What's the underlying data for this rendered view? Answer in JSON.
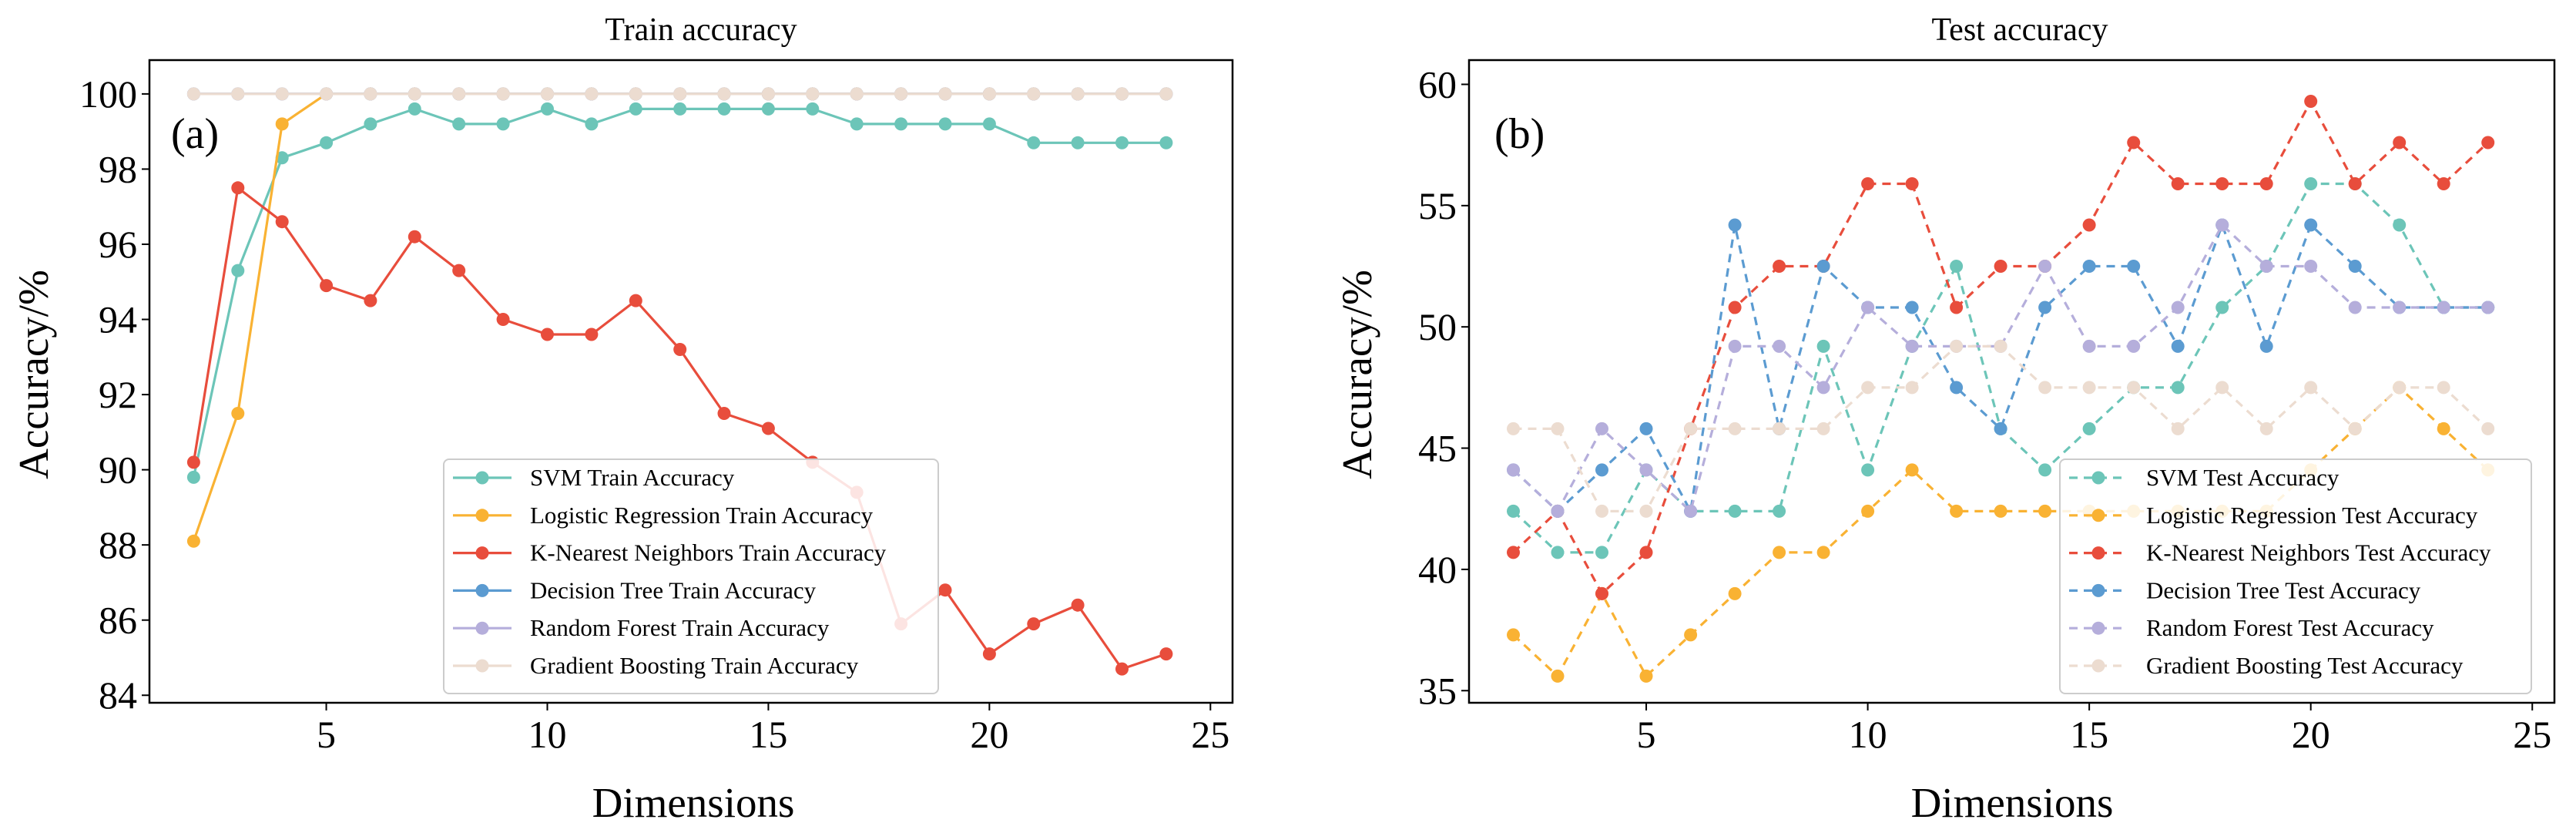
{
  "chart_data": [
    {
      "type": "line",
      "title": "Train accuracy",
      "panel_label": "(a)",
      "xlabel": "Dimensions",
      "ylabel": "Accuracy/%",
      "xlim": [
        1,
        25.5
      ],
      "ylim": [
        83.8,
        100.9
      ],
      "xticks": [
        5,
        10,
        15,
        20,
        25
      ],
      "yticks": [
        84,
        86,
        88,
        90,
        92,
        94,
        96,
        98,
        100
      ],
      "legend_position": "lower-right",
      "line_style": "solid",
      "x": [
        2,
        3,
        4,
        5,
        6,
        7,
        8,
        9,
        10,
        11,
        12,
        13,
        14,
        15,
        16,
        17,
        18,
        19,
        20,
        21,
        22,
        23,
        24
      ],
      "series": [
        {
          "name": "SVM Train Accuracy",
          "color": "#6cc5b8",
          "values": [
            89.8,
            95.3,
            98.3,
            98.7,
            99.2,
            99.6,
            99.2,
            99.2,
            99.6,
            99.2,
            99.6,
            99.6,
            99.6,
            99.6,
            99.6,
            99.2,
            99.2,
            99.2,
            99.2,
            98.7,
            98.7,
            98.7,
            98.7
          ]
        },
        {
          "name": "Logistic Regression Train Accuracy",
          "color": "#f9b233",
          "values": [
            88.1,
            91.5,
            99.2,
            100,
            100,
            100,
            100,
            100,
            100,
            100,
            100,
            100,
            100,
            100,
            100,
            100,
            100,
            100,
            100,
            100,
            100,
            100,
            100
          ]
        },
        {
          "name": "K-Nearest Neighbors Train Accuracy",
          "color": "#e84d3c",
          "values": [
            90.2,
            97.5,
            96.6,
            94.9,
            94.5,
            96.2,
            95.3,
            94.0,
            93.6,
            93.6,
            94.5,
            93.2,
            91.5,
            91.1,
            90.2,
            89.4,
            85.9,
            86.8,
            85.1,
            85.9,
            86.4,
            84.7,
            85.1
          ]
        },
        {
          "name": "Decision Tree Train Accuracy",
          "color": "#5b9bd1",
          "values": [
            100,
            100,
            100,
            100,
            100,
            100,
            100,
            100,
            100,
            100,
            100,
            100,
            100,
            100,
            100,
            100,
            100,
            100,
            100,
            100,
            100,
            100,
            100
          ]
        },
        {
          "name": "Random Forest Train Accuracy",
          "color": "#b5aedb",
          "values": [
            100,
            100,
            100,
            100,
            100,
            100,
            100,
            100,
            100,
            100,
            100,
            100,
            100,
            100,
            100,
            100,
            100,
            100,
            100,
            100,
            100,
            100,
            100
          ]
        },
        {
          "name": "Gradient Boosting Train Accuracy",
          "color": "#ecdcd0",
          "values": [
            100,
            100,
            100,
            100,
            100,
            100,
            100,
            100,
            100,
            100,
            100,
            100,
            100,
            100,
            100,
            100,
            100,
            100,
            100,
            100,
            100,
            100,
            100
          ]
        }
      ]
    },
    {
      "type": "line",
      "title": "Test accuracy",
      "panel_label": "(b)",
      "xlabel": "Dimensions",
      "ylabel": "Accuracy/%",
      "xlim": [
        1,
        25.5
      ],
      "ylim": [
        34.5,
        61
      ],
      "xticks": [
        5,
        10,
        15,
        20,
        25
      ],
      "yticks": [
        35,
        40,
        45,
        50,
        55,
        60
      ],
      "legend_position": "lower-right",
      "line_style": "dashed",
      "x": [
        2,
        3,
        4,
        5,
        6,
        7,
        8,
        9,
        10,
        11,
        12,
        13,
        14,
        15,
        16,
        17,
        18,
        19,
        20,
        21,
        22,
        23,
        24
      ],
      "series": [
        {
          "name": "SVM Test Accuracy",
          "color": "#6cc5b8",
          "values": [
            42.4,
            40.7,
            40.7,
            44.1,
            42.4,
            42.4,
            42.4,
            49.2,
            44.1,
            49.2,
            52.5,
            45.8,
            44.1,
            45.8,
            47.5,
            47.5,
            50.8,
            52.5,
            55.9,
            55.9,
            54.2,
            50.8,
            50.8
          ]
        },
        {
          "name": "Logistic Regression Test Accuracy",
          "color": "#f9b233",
          "values": [
            37.3,
            35.6,
            39.0,
            35.6,
            37.3,
            39.0,
            40.7,
            40.7,
            42.4,
            44.1,
            42.4,
            42.4,
            42.4,
            42.4,
            42.4,
            42.4,
            42.4,
            42.4,
            44.1,
            45.8,
            47.5,
            45.8,
            44.1
          ]
        },
        {
          "name": "K-Nearest Neighbors Test Accuracy",
          "color": "#e84d3c",
          "values": [
            40.7,
            42.4,
            39.0,
            40.7,
            45.8,
            50.8,
            52.5,
            52.5,
            55.9,
            55.9,
            50.8,
            52.5,
            52.5,
            54.2,
            57.6,
            55.9,
            55.9,
            55.9,
            59.3,
            55.9,
            57.6,
            55.9,
            57.6
          ]
        },
        {
          "name": "Decision Tree Test Accuracy",
          "color": "#5b9bd1",
          "values": [
            44.1,
            42.4,
            44.1,
            45.8,
            42.4,
            54.2,
            45.8,
            52.5,
            50.8,
            50.8,
            47.5,
            45.8,
            50.8,
            52.5,
            52.5,
            49.2,
            54.2,
            49.2,
            54.2,
            52.5,
            50.8,
            50.8,
            50.8
          ]
        },
        {
          "name": "Random Forest Test Accuracy",
          "color": "#b5aedb",
          "values": [
            44.1,
            42.4,
            45.8,
            44.1,
            42.4,
            49.2,
            49.2,
            47.5,
            50.8,
            49.2,
            49.2,
            49.2,
            52.5,
            49.2,
            49.2,
            50.8,
            54.2,
            52.5,
            52.5,
            50.8,
            50.8,
            50.8,
            50.8
          ]
        },
        {
          "name": "Gradient Boosting Test Accuracy",
          "color": "#ecdcd0",
          "values": [
            45.8,
            45.8,
            42.4,
            42.4,
            45.8,
            45.8,
            45.8,
            45.8,
            47.5,
            47.5,
            49.2,
            49.2,
            47.5,
            47.5,
            47.5,
            45.8,
            47.5,
            45.8,
            47.5,
            45.8,
            47.5,
            47.5,
            45.8
          ]
        }
      ]
    }
  ]
}
